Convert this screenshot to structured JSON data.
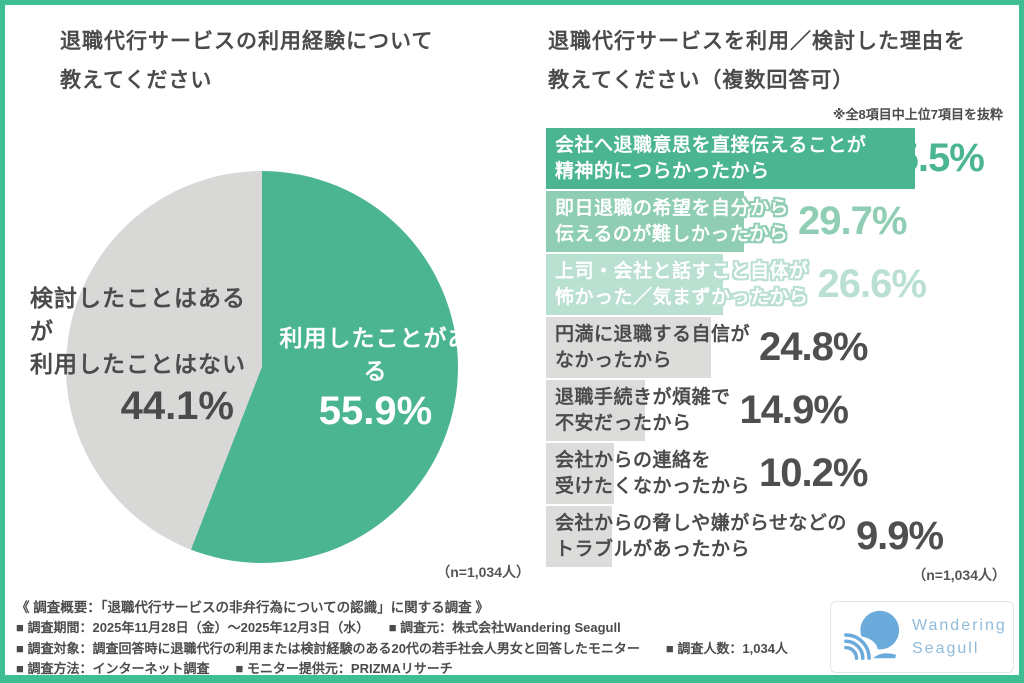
{
  "page": {
    "frame_color": "#3FBE92",
    "background": "#FFFFFF",
    "text_color": "#4B4B4B"
  },
  "pie": {
    "title": "退職代行サービスの利用経験について\n教えてください",
    "n_note": "（n=1,034人）",
    "slices": [
      {
        "label": "利用したことがある",
        "pct": "55.9%",
        "value": 55.9,
        "color": "#4BB592",
        "text_color": "#FFFFFF"
      },
      {
        "label": "検討したことはあるが\n利用したことはない",
        "pct": "44.1%",
        "value": 44.1,
        "color": "#D8D8D7",
        "text_color": "#4B4B4B"
      }
    ]
  },
  "bars": {
    "title": "退職代行サービスを利用／検討した理由を\n教えてください（複数回答可）",
    "note": "※全8項目中上位7項目を抜粋",
    "n_note": "（n=1,034人）",
    "items": [
      {
        "label": "会社へ退職意思を直接伝えることが\n精神的につらかったから",
        "pct": "55.5%",
        "value": 55.5,
        "bar_color": "#4BB592",
        "label_color": "#FFFFFF",
        "pct_color": "#4BB592",
        "outline_color": "#4BB592"
      },
      {
        "label": "即日退職の希望を自分から\n伝えるのが難しかったから",
        "pct": "29.7%",
        "value": 29.7,
        "bar_color": "#8FCEB4",
        "label_color": "#FFFFFF",
        "pct_color": "#8FCEB4",
        "outline_color": "#8FCEB4"
      },
      {
        "label": "上司・会社と話すこと自体が\n怖かった／気まずかったから",
        "pct": "26.6%",
        "value": 26.6,
        "bar_color": "#BAE0D1",
        "label_color": "#FFFFFF",
        "pct_color": "#BAE0D1",
        "outline_color": "#BAE0D1"
      },
      {
        "label": "円満に退職する自信が\nなかったから",
        "pct": "24.8%",
        "value": 24.8,
        "bar_color": "#DCDCDB",
        "label_color": "#4B4B4B",
        "pct_color": "#4F4F4F"
      },
      {
        "label": "退職手続きが煩雑で\n不安だったから",
        "pct": "14.9%",
        "value": 14.9,
        "bar_color": "#DCDCDB",
        "label_color": "#4B4B4B",
        "pct_color": "#4F4F4F"
      },
      {
        "label": "会社からの連絡を\n受けたくなかったから",
        "pct": "10.2%",
        "value": 10.2,
        "bar_color": "#DCDCDB",
        "label_color": "#4B4B4B",
        "pct_color": "#4F4F4F"
      },
      {
        "label": "会社からの脅しや嫌がらせなどの\nトラブルがあったから",
        "pct": "9.9%",
        "value": 9.9,
        "bar_color": "#DCDCDB",
        "label_color": "#4B4B4B",
        "pct_color": "#4F4F4F"
      }
    ]
  },
  "survey": {
    "heading": "《 調査概要：「退職代行サービスの非弁行為についての認識」に関する調査 》",
    "lines": [
      "■ 調査期間：2025年11月28日（金）～2025年12月3日（水）　　■ 調査元：株式会社Wandering Seagull",
      "■ 調査対象：調査回答時に退職代行の利用または検討経験のある20代の若手社会人男女と回答したモニター　　■ 調査人数：1,034人",
      "■ 調査方法：インターネット調査　　■ モニター提供元：PRIZMAリサーチ"
    ]
  },
  "logo": {
    "name": "Wandering\nSeagull",
    "text_color": "#8FBCDA",
    "icon_color": "#6AABDC"
  },
  "chart_data": [
    {
      "type": "pie",
      "title": "退職代行サービスの利用経験について教えてください",
      "labels": [
        "利用したことがある",
        "検討したことはあるが利用したことはない"
      ],
      "values": [
        55.9,
        44.1
      ],
      "colors": [
        "#4BB592",
        "#D8D8D7"
      ],
      "annotations": [
        "（n=1,034人）"
      ],
      "legend_position": "on-slice"
    },
    {
      "type": "bar",
      "title": "退職代行サービスを利用／検討した理由を教えてください（複数回答可）",
      "subtitle": "※全8項目中上位7項目を抜粋",
      "orientation": "horizontal",
      "categories": [
        "会社へ退職意思を直接伝えることが精神的につらかったから",
        "即日退職の希望を自分から伝えるのが難しかったから",
        "上司・会社と話すこと自体が怖かった／気まずかったから",
        "円満に退職する自信がなかったから",
        "退職手続きが煩雑で不安だったから",
        "会社からの連絡を受けたくなかったから",
        "会社からの脅しや嫌がらせなどのトラブルがあったから"
      ],
      "values": [
        55.5,
        29.7,
        26.6,
        24.8,
        14.9,
        10.2,
        9.9
      ],
      "colors": [
        "#4BB592",
        "#8FCEB4",
        "#BAE0D1",
        "#DCDCDB",
        "#DCDCDB",
        "#DCDCDB",
        "#DCDCDB"
      ],
      "xlim": [
        0,
        60
      ],
      "grid": false,
      "annotations": [
        "（n=1,034人）"
      ]
    }
  ]
}
